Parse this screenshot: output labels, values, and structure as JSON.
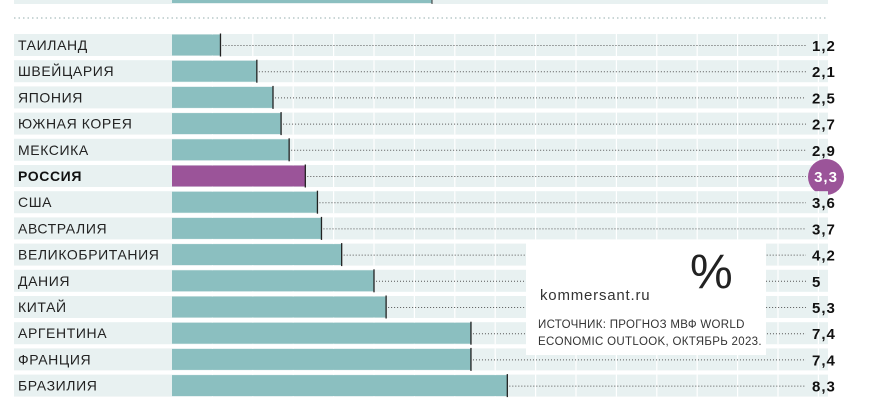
{
  "chart_data": {
    "type": "bar",
    "orientation": "horizontal",
    "categories": [
      "ТАИЛАНД",
      "ШВЕЙЦАРИЯ",
      "ЯПОНИЯ",
      "ЮЖНАЯ КОРЕЯ",
      "МЕКСИКА",
      "РОССИЯ",
      "США",
      "АВСТРАЛИЯ",
      "ВЕЛИКОБРИТАНИЯ",
      "ДАНИЯ",
      "КИТАЙ",
      "АРГЕНТИНА",
      "ФРАНЦИЯ",
      "БРАЗИЛИЯ"
    ],
    "values": [
      1.2,
      2.1,
      2.5,
      2.7,
      2.9,
      3.3,
      3.6,
      3.7,
      4.2,
      5,
      5.3,
      7.4,
      7.4,
      8.3
    ],
    "value_labels": [
      "1,2",
      "2,1",
      "2,5",
      "2,7",
      "2,9",
      "3,3",
      "3,6",
      "3,7",
      "4,2",
      "5",
      "5,3",
      "7,4",
      "7,4",
      "8,3"
    ],
    "highlight": "РОССИЯ",
    "xlim": [
      0,
      17
    ],
    "unit_symbol": "%",
    "source": "ИСТОЧНИК: ПРОГНОЗ МВФ WORLD ECONOMIC OUTLOOK, ОКТЯБРЬ 2023.",
    "brand": "kommersant.ru"
  },
  "colors": {
    "bar": "#8bbfc0",
    "bar_highlight": "#9b5499",
    "row_band": "#e8f1f1",
    "grid": "#ffffff"
  }
}
